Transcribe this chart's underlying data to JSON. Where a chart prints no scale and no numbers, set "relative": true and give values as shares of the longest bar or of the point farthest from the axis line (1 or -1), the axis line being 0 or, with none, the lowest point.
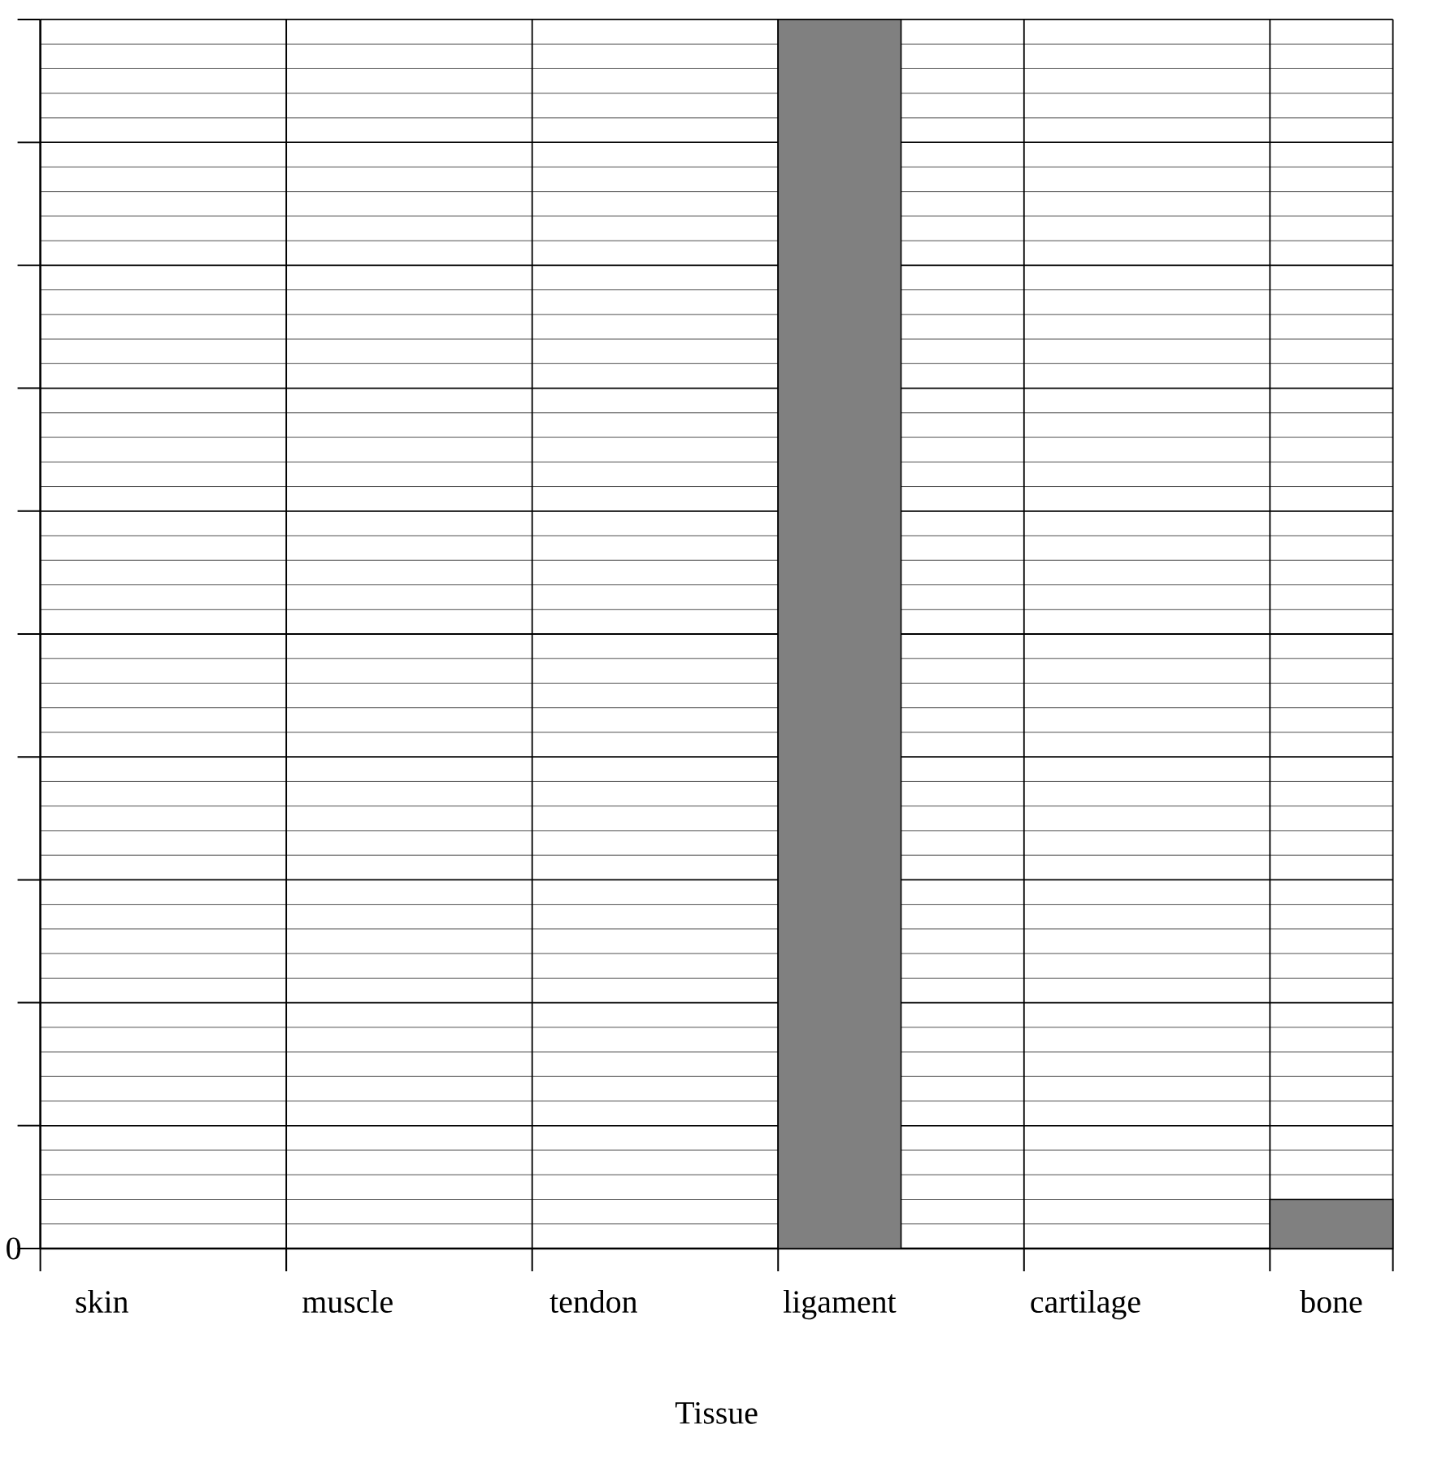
{
  "chart_data": {
    "type": "bar",
    "xlabel": "Tissue",
    "categories": [
      "skin",
      "muscle",
      "tendon",
      "ligament",
      "cartilage",
      "bone"
    ],
    "values": [
      null,
      null,
      null,
      1,
      null,
      0.04
    ],
    "color": "#808080",
    "relative": true,
    "grid": true,
    "annotations": [
      "0"
    ]
  }
}
